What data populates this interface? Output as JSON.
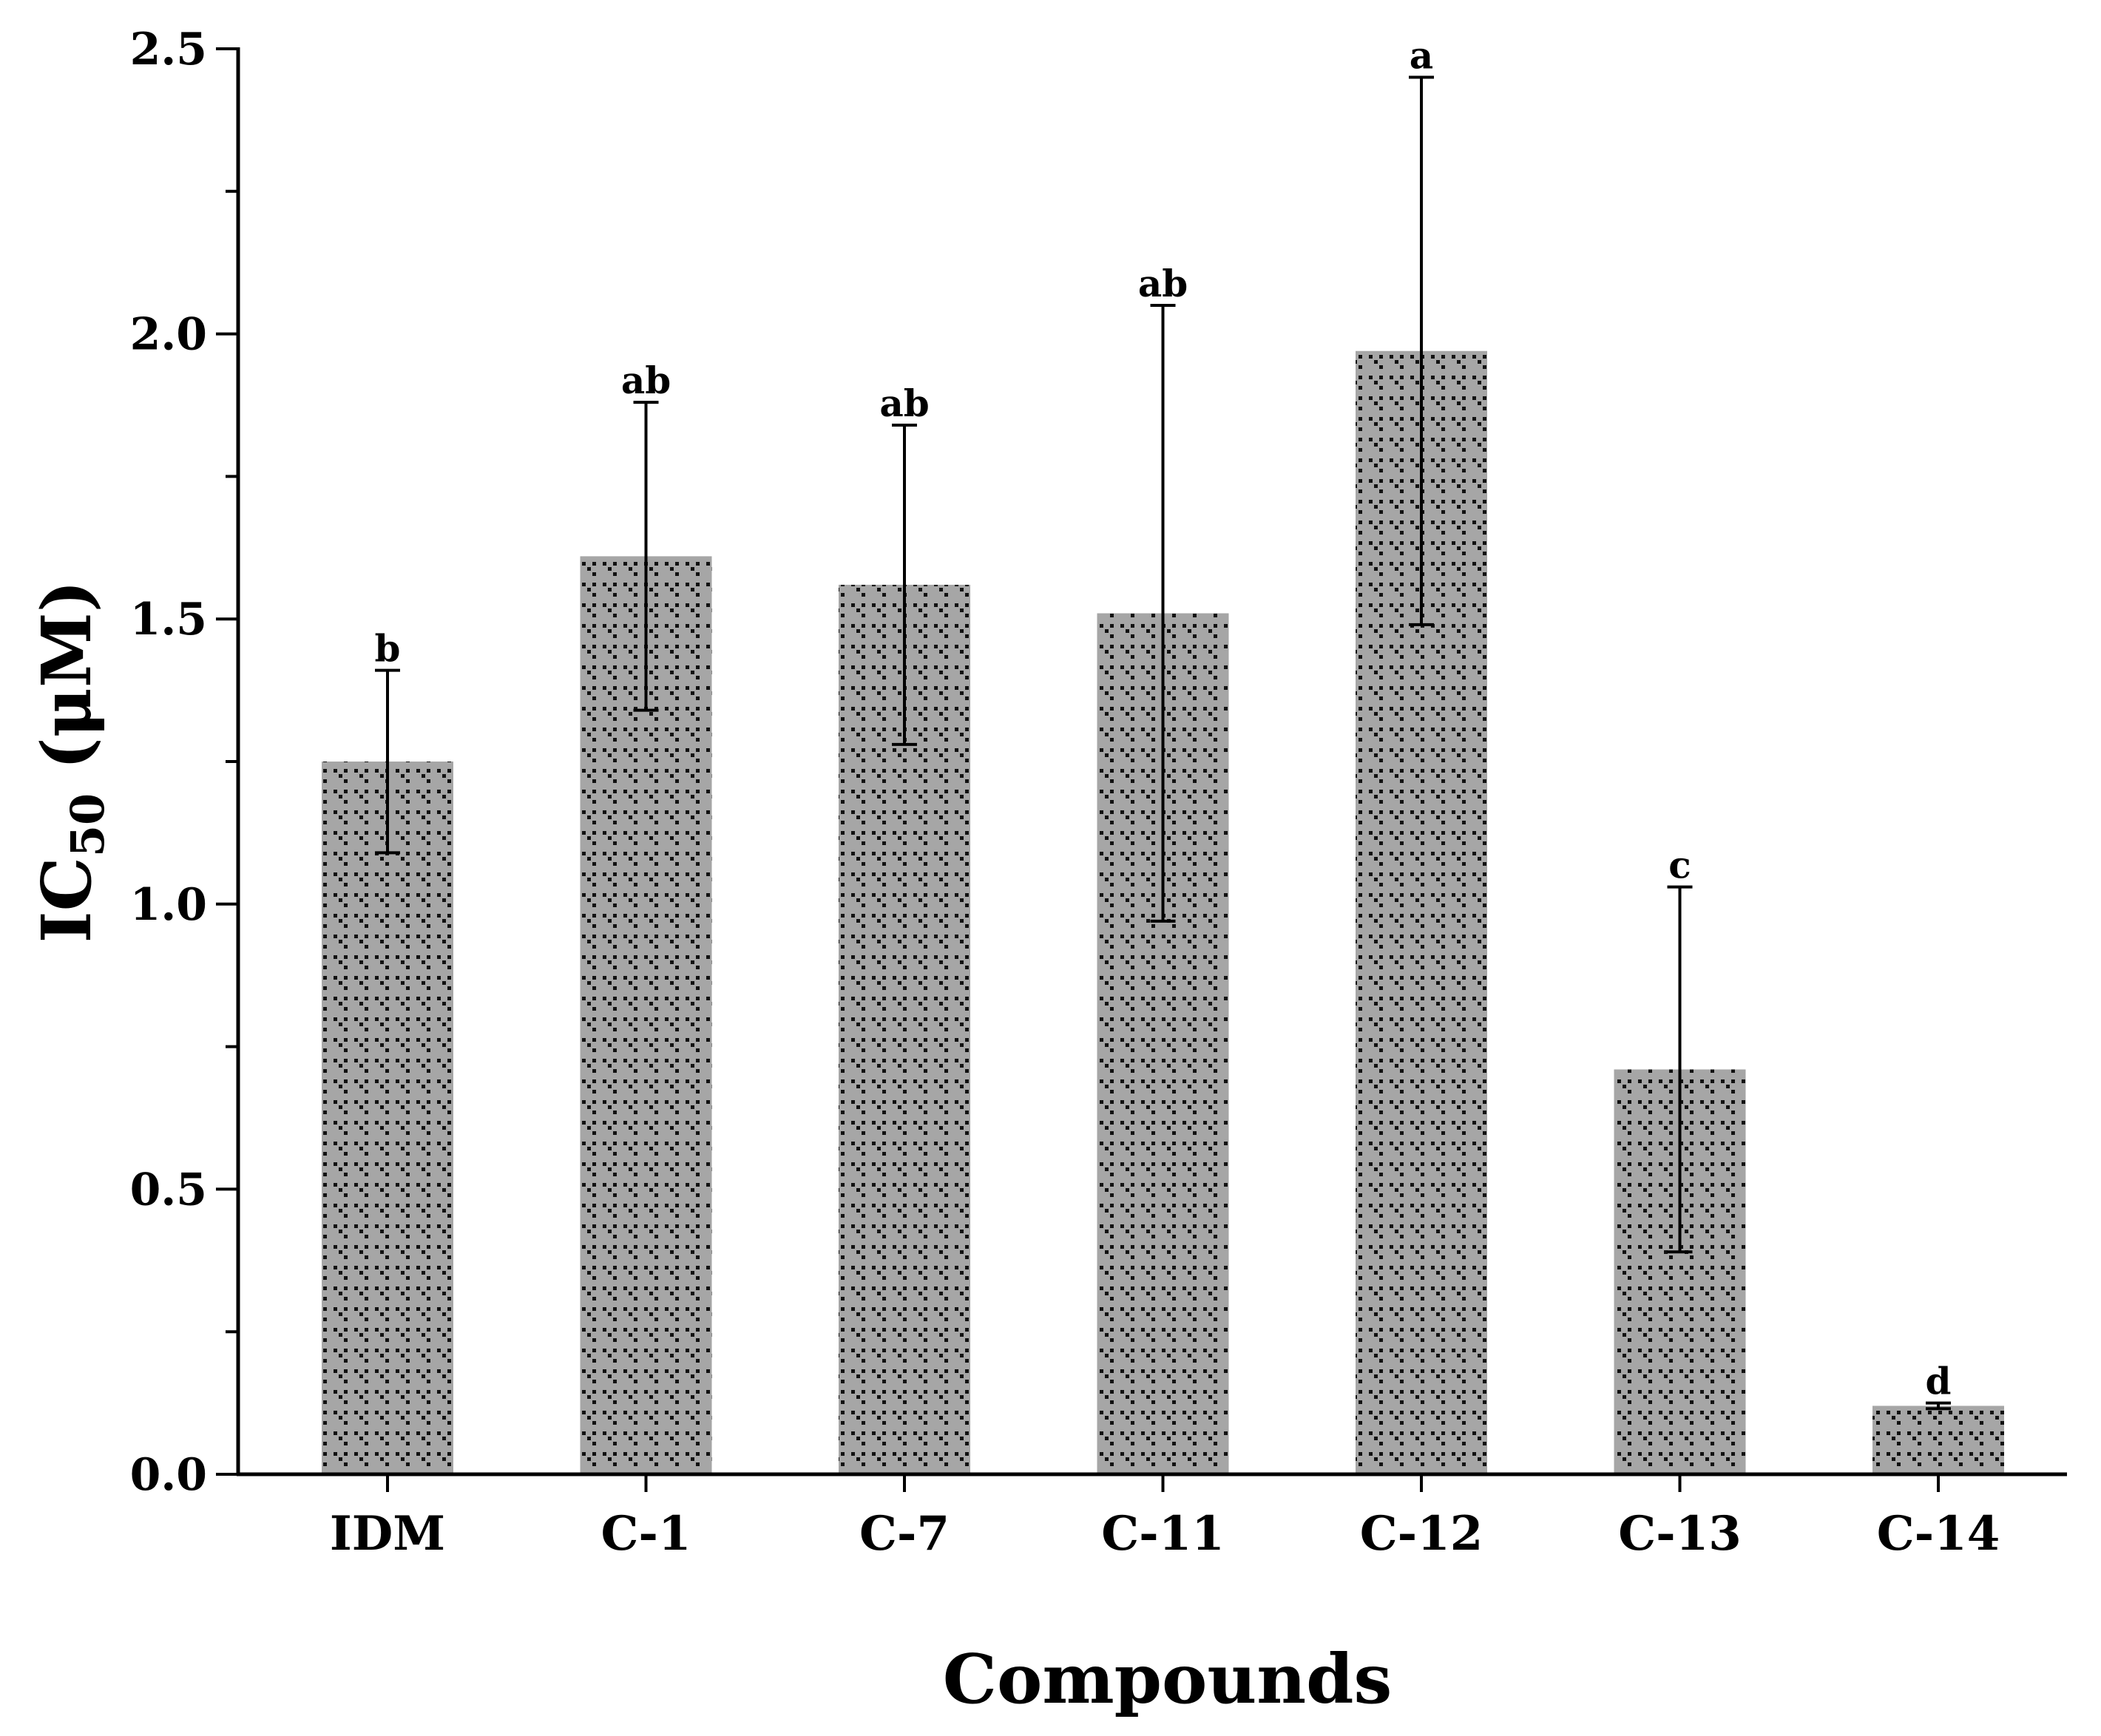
{
  "chart_data": {
    "type": "bar",
    "title": "",
    "xlabel": "Compounds",
    "ylabel": {
      "main": "IC",
      "subscript": "50",
      "unit": " (μM)"
    },
    "ylim": [
      0,
      2.5
    ],
    "yticks": [
      "0.0",
      "0.5",
      "1.0",
      "1.5",
      "2.0",
      "2.5"
    ],
    "categories": [
      "IDM",
      "C-1",
      "C-7",
      "C-11",
      "C-12",
      "C-13",
      "C-14"
    ],
    "values": [
      1.25,
      1.61,
      1.56,
      1.51,
      1.97,
      0.71,
      0.12
    ],
    "errors": [
      0.16,
      0.27,
      0.28,
      0.54,
      0.48,
      0.32,
      0.005
    ],
    "significance": [
      "b",
      "ab",
      "ab",
      "ab",
      "a",
      "c",
      "d"
    ],
    "bar_color": "#a6a6a6",
    "pattern_color": "#000000",
    "grid": false
  }
}
